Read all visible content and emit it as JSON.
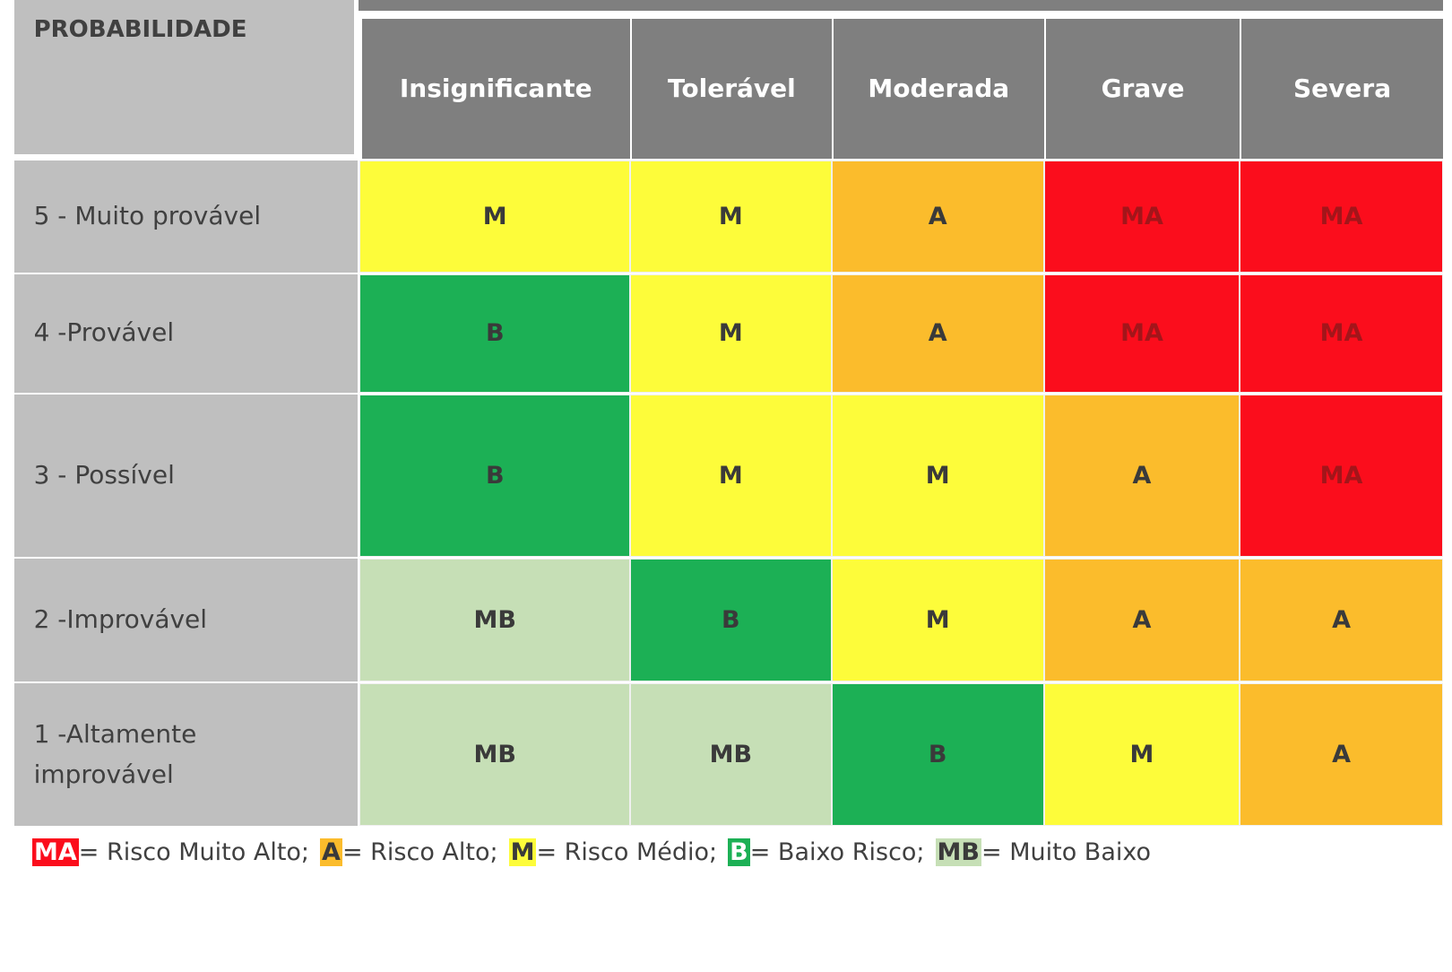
{
  "header": {
    "corner": "PROBABILIDADE",
    "columns": [
      "Insignificante",
      "Tolerável",
      "Moderada",
      "Grave",
      "Severa"
    ]
  },
  "rows": [
    {
      "label": "5 - Muito provável",
      "cells": [
        "M",
        "M",
        "A",
        "MA",
        "MA"
      ]
    },
    {
      "label": "4 -Provável",
      "cells": [
        "B",
        "M",
        "A",
        "MA",
        "MA"
      ]
    },
    {
      "label": "3 - Possível",
      "cells": [
        "B",
        "M",
        "M",
        "A",
        "MA"
      ]
    },
    {
      "label": "2 -Improvável",
      "cells": [
        "MB",
        "B",
        "M",
        "A",
        "A"
      ]
    },
    {
      "label": "1 -Altamente improvável",
      "cells": [
        "MB",
        "MB",
        "B",
        "M",
        "A"
      ]
    }
  ],
  "legend": [
    {
      "code": "MA",
      "text": "= Risco Muito Alto;",
      "color": "#fb0d1c"
    },
    {
      "code": "A",
      "text": "= Risco Alto;",
      "color": "#fbbc2c"
    },
    {
      "code": "M",
      "text": "= Risco Médio;",
      "color": "#fdfc3a"
    },
    {
      "code": "B",
      "text": "= Baixo Risco;",
      "color": "#1cb055"
    },
    {
      "code": "MB",
      "text": "= Muito Baixo",
      "color": "#c6dfb6"
    }
  ]
}
